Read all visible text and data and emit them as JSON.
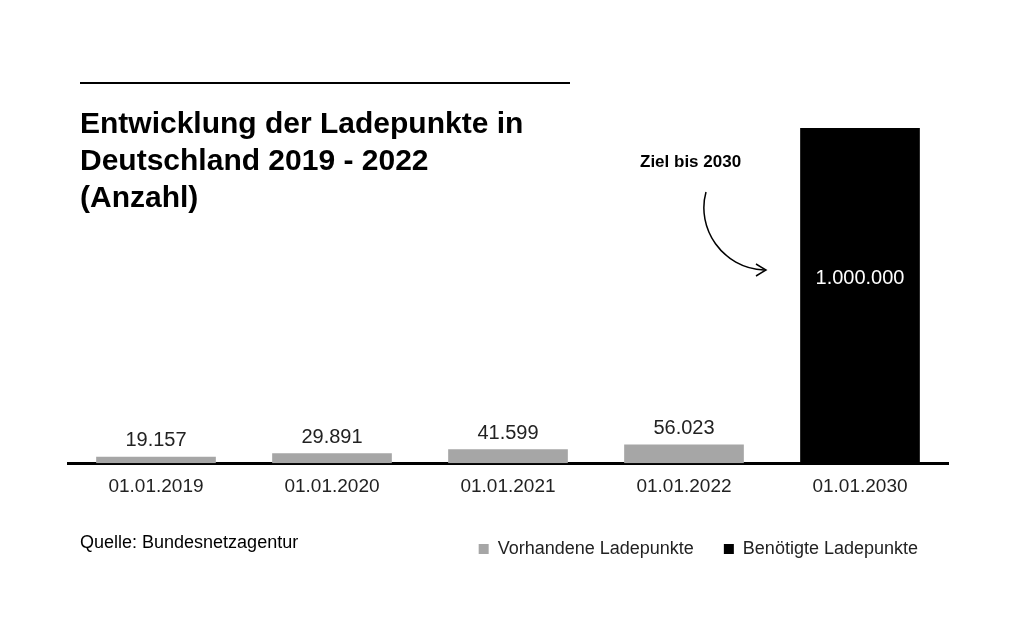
{
  "chart_data": {
    "type": "bar",
    "title": "Entwicklung der Ladepunkte in Deutschland 2019 - 2022 (Anzahl)",
    "categories": [
      "01.01.2019",
      "01.01.2020",
      "01.01.2021",
      "01.01.2022",
      "01.01.2030"
    ],
    "series": [
      {
        "name": "Vorhandene Ladepunkte",
        "color": "#a6a6a6",
        "values": [
          19157,
          29891,
          41599,
          56023,
          null
        ],
        "value_labels": [
          "19.157",
          "29.891",
          "41.599",
          "56.023",
          null
        ]
      },
      {
        "name": "Benötigte Ladepunkte",
        "color": "#000000",
        "values": [
          null,
          null,
          null,
          null,
          1000000
        ],
        "value_labels": [
          null,
          null,
          null,
          null,
          "1.000.000"
        ]
      }
    ],
    "grid": false,
    "legend": "bottom right",
    "annotations": [
      "Ziel bis 2030",
      "Quelle: Bundesnetzagentur"
    ]
  }
}
